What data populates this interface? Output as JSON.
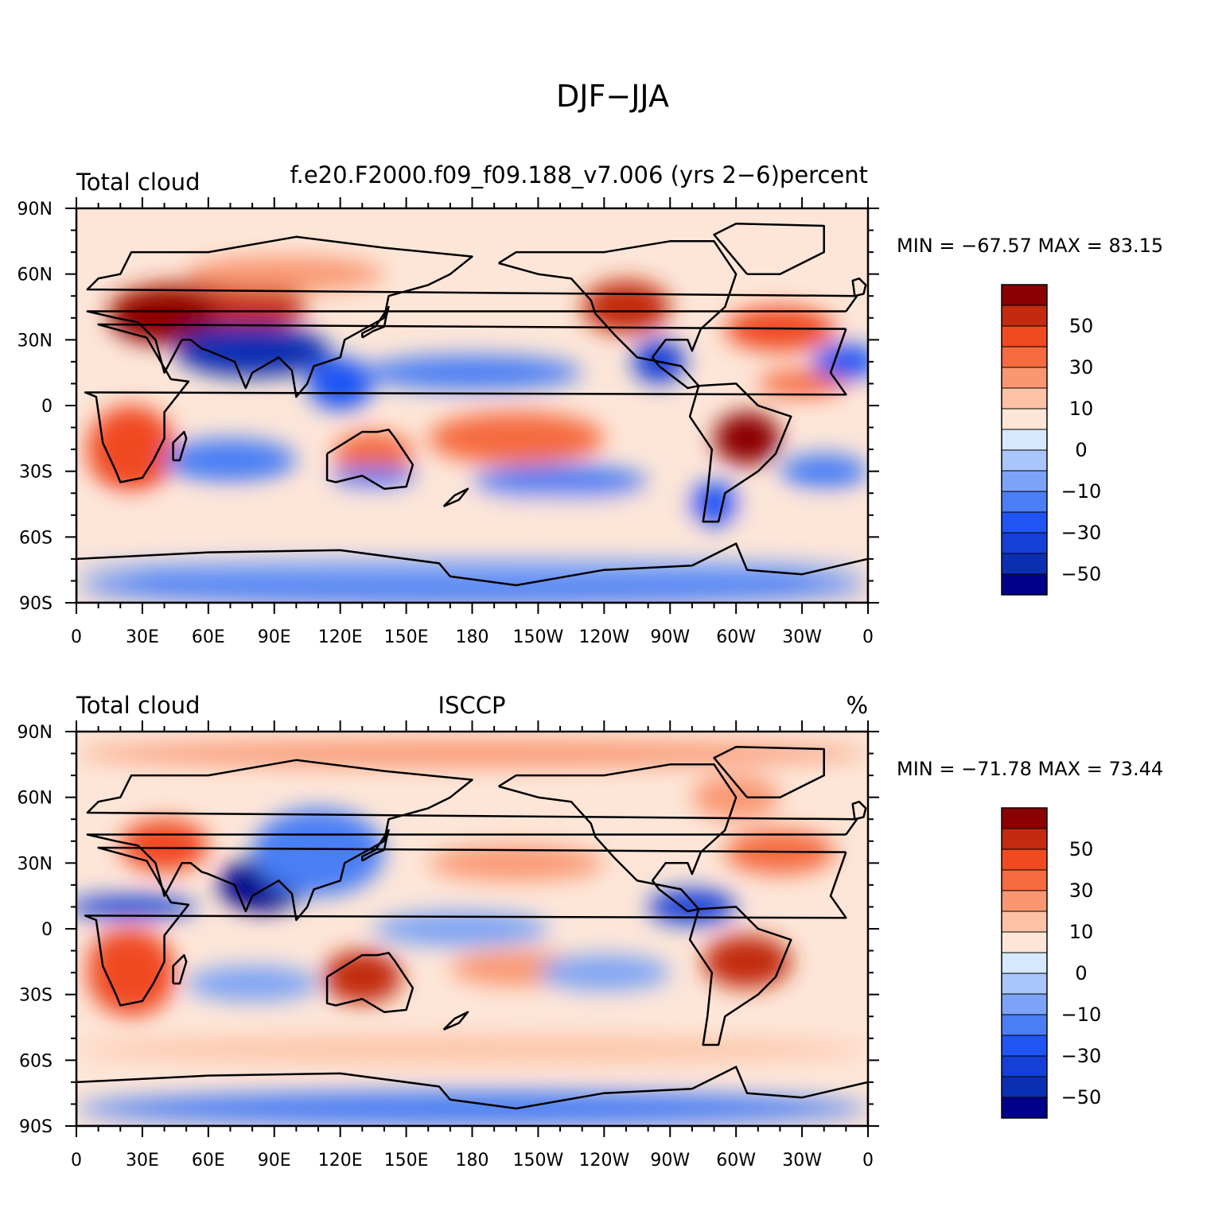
{
  "figure": {
    "title": "DJF−JJA"
  },
  "chart_data": [
    {
      "type": "heatmap",
      "title_left": "Total cloud",
      "title_center": "f.e20.F2000.f09_f09.188_v7.006 (yrs 2−6)percent",
      "title_right": "",
      "min_label": "MIN = −67.57 MAX =  83.15",
      "min": -67.57,
      "max": 83.15,
      "x_ticks": [
        "0",
        "30E",
        "60E",
        "90E",
        "120E",
        "150E",
        "180",
        "150W",
        "120W",
        "90W",
        "60W",
        "30W",
        "0"
      ],
      "y_ticks": [
        "90N",
        "60N",
        "30N",
        "0",
        "30S",
        "60S",
        "90S"
      ],
      "xlim": [
        0,
        360
      ],
      "ylim": [
        -90,
        90
      ],
      "colorbar": {
        "levels": [
          -60,
          -50,
          -40,
          -30,
          -20,
          -10,
          -5,
          0,
          5,
          10,
          20,
          30,
          40,
          50,
          60
        ],
        "labels": [
          "50",
          "30",
          "10",
          "0",
          "−10",
          "−30",
          "−50"
        ],
        "colors": [
          "#00008b",
          "#0a2fb3",
          "#1440d8",
          "#1f55f5",
          "#4a7ef5",
          "#7ca3f5",
          "#a9c6fb",
          "#d5e8fd",
          "#fde6d8",
          "#fdc2a6",
          "#f99772",
          "#f56b3f",
          "#f04a22",
          "#c22b0e",
          "#8b0000"
        ]
      }
    },
    {
      "type": "heatmap",
      "title_left": "Total cloud",
      "title_center": "ISCCP",
      "title_right": "%",
      "min_label": "MIN = −71.78 MAX =  73.44",
      "min": -71.78,
      "max": 73.44,
      "x_ticks": [
        "0",
        "30E",
        "60E",
        "90E",
        "120E",
        "150E",
        "180",
        "150W",
        "120W",
        "90W",
        "60W",
        "30W",
        "0"
      ],
      "y_ticks": [
        "90N",
        "60N",
        "30N",
        "0",
        "30S",
        "60S",
        "90S"
      ],
      "xlim": [
        0,
        360
      ],
      "ylim": [
        -90,
        90
      ],
      "colorbar": {
        "levels": [
          -60,
          -50,
          -40,
          -30,
          -20,
          -10,
          -5,
          0,
          5,
          10,
          20,
          30,
          40,
          50,
          60
        ],
        "labels": [
          "50",
          "30",
          "10",
          "0",
          "−10",
          "−30",
          "−50"
        ],
        "colors": [
          "#00008b",
          "#0a2fb3",
          "#1440d8",
          "#1f55f5",
          "#4a7ef5",
          "#7ca3f5",
          "#a9c6fb",
          "#d5e8fd",
          "#fde6d8",
          "#fdc2a6",
          "#f99772",
          "#f56b3f",
          "#f04a22",
          "#c22b0e",
          "#8b0000"
        ]
      }
    }
  ]
}
